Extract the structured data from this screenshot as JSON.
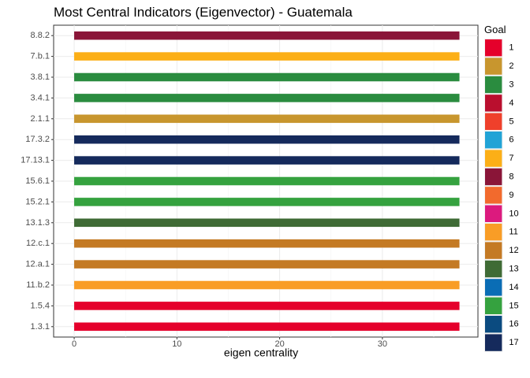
{
  "chart_data": {
    "type": "bar",
    "orientation": "horizontal",
    "title": "Most Central Indicators (Eigenvector) - Guatemala",
    "xlabel": "eigen centrality",
    "ylabel": "",
    "xlim": [
      -2,
      39.3
    ],
    "xticks": [
      0,
      10,
      20,
      30
    ],
    "grid": true,
    "legend_position": "right",
    "categories": [
      "8.8.2",
      "7.b.1",
      "3.8.1",
      "3.4.1",
      "2.1.1",
      "17.3.2",
      "17.13.1",
      "15.6.1",
      "15.2.1",
      "13.1.3",
      "12.c.1",
      "12.a.1",
      "11.b.2",
      "1.5.4",
      "1.3.1"
    ],
    "values": [
      37.5,
      37.5,
      37.5,
      37.5,
      37.5,
      37.5,
      37.5,
      37.5,
      37.5,
      37.5,
      37.5,
      37.5,
      37.5,
      37.5,
      37.5
    ],
    "bar_goal": [
      "8",
      "7",
      "3",
      "3",
      "2",
      "17",
      "17",
      "15",
      "15",
      "13",
      "12",
      "12",
      "11",
      "1",
      "1"
    ],
    "legend": {
      "title": "Goal",
      "entries": [
        {
          "label": "1",
          "color": "#E5002B"
        },
        {
          "label": "2",
          "color": "#C8962E"
        },
        {
          "label": "3",
          "color": "#2A8C3F"
        },
        {
          "label": "4",
          "color": "#BA0F2E"
        },
        {
          "label": "5",
          "color": "#EF402B"
        },
        {
          "label": "6",
          "color": "#21A3D6"
        },
        {
          "label": "7",
          "color": "#FCAF17"
        },
        {
          "label": "8",
          "color": "#8A1538"
        },
        {
          "label": "9",
          "color": "#F26A2D"
        },
        {
          "label": "10",
          "color": "#DC1A7E"
        },
        {
          "label": "11",
          "color": "#F99D26"
        },
        {
          "label": "12",
          "color": "#C47A24"
        },
        {
          "label": "13",
          "color": "#3F6B35"
        },
        {
          "label": "14",
          "color": "#0A6DB5"
        },
        {
          "label": "15",
          "color": "#35A23F"
        },
        {
          "label": "16",
          "color": "#0B4B80"
        },
        {
          "label": "17",
          "color": "#152A5C"
        }
      ]
    }
  }
}
